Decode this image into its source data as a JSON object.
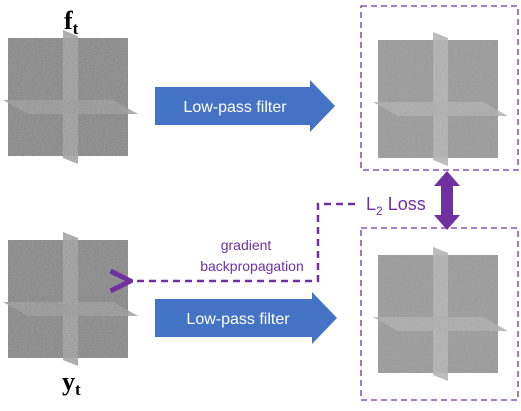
{
  "labels": {
    "f_main": "f",
    "f_sub": "t",
    "y_main": "y",
    "y_sub": "t",
    "filter_top": "Low-pass filter",
    "filter_bottom": "Low-pass filter",
    "loss_main": "L",
    "loss_sub": "2",
    "loss_word": "Loss",
    "grad_line1": "gradient",
    "grad_line2": "backpropagation"
  }
}
